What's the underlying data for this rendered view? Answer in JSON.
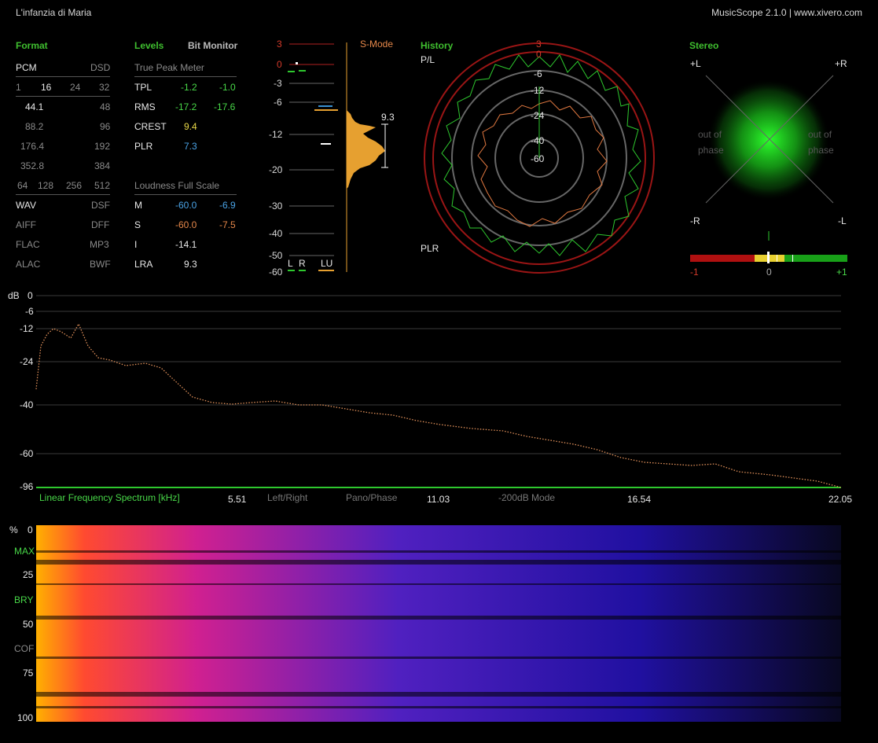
{
  "title": "L'infanzia di Maria",
  "app_info": "MusicScope 2.1.0 | www.xivero.com",
  "format": {
    "header": "Format",
    "pcm": "PCM",
    "dsd": "DSD",
    "bits": [
      "1",
      "16",
      "24",
      "32"
    ],
    "rates_left": [
      "44.1",
      "88.2",
      "176.4",
      "352.8"
    ],
    "rates_right": [
      "48",
      "96",
      "192",
      "384"
    ],
    "dsd_rates": [
      "64",
      "128",
      "256",
      "512"
    ],
    "types_left": [
      "WAV",
      "AIFF",
      "FLAC",
      "ALAC"
    ],
    "types_right": [
      "DSF",
      "DFF",
      "MP3",
      "BWF"
    ]
  },
  "levels": {
    "header": "Levels",
    "bit_monitor": "Bit Monitor",
    "tp_header": "True Peak Meter",
    "rows": [
      {
        "label": "TPL",
        "v1": "-1.2",
        "v2": "-1.0"
      },
      {
        "label": "RMS",
        "v1": "-17.2",
        "v2": "-17.6"
      },
      {
        "label": "CREST",
        "v1": "9.4"
      },
      {
        "label": "PLR",
        "v1": "7.3"
      }
    ],
    "lufs_header": "Loudness Full Scale",
    "lufs_rows": [
      {
        "label": "M",
        "v1": "-60.0",
        "v2": "-6.9"
      },
      {
        "label": "S",
        "v1": "-60.0",
        "v2": "-7.5"
      },
      {
        "label": "I",
        "v1": "-14.1"
      },
      {
        "label": "LRA",
        "v1": "9.3"
      }
    ]
  },
  "meter": {
    "mode": "S-Mode",
    "scale": [
      "3",
      "0",
      "-3",
      "-6",
      "-12",
      "-20",
      "-30",
      "-40",
      "-50",
      "-60"
    ],
    "lra_value": "9.3",
    "labels": [
      "L",
      "R",
      "LU"
    ]
  },
  "history": {
    "header": "History",
    "pl_label": "P/L",
    "plr_label": "PLR",
    "rings": [
      "3",
      "0",
      "-6",
      "-12",
      "-24",
      "-40",
      "-60"
    ]
  },
  "stereo": {
    "header": "Stereo",
    "corners": [
      "+L",
      "+R",
      "-R",
      "-L"
    ],
    "out_of_phase": [
      "out of",
      "phase"
    ],
    "corr_scale": [
      "-1",
      "0",
      "+1"
    ]
  },
  "spectrum": {
    "db_label": "dB",
    "db_ticks": [
      "0",
      "-6",
      "-12",
      "-24",
      "-40",
      "-60",
      "-96"
    ],
    "footer_label": "Linear Frequency Spectrum [kHz]",
    "khz_ticks": [
      "5.51",
      "11.03",
      "16.54",
      "22.05"
    ],
    "modes": [
      "Left/Right",
      "Pano/Phase",
      "-200dB Mode"
    ]
  },
  "spectrogram": {
    "pct_label": "%",
    "ticks": [
      "0",
      "25",
      "50",
      "75",
      "100"
    ],
    "markers": [
      "MAX",
      "BRY",
      "COF"
    ]
  },
  "colors": {
    "accent_green": "#3fbf2f",
    "meter_orange": "#e6a030",
    "ring_red": "#8a1010"
  }
}
